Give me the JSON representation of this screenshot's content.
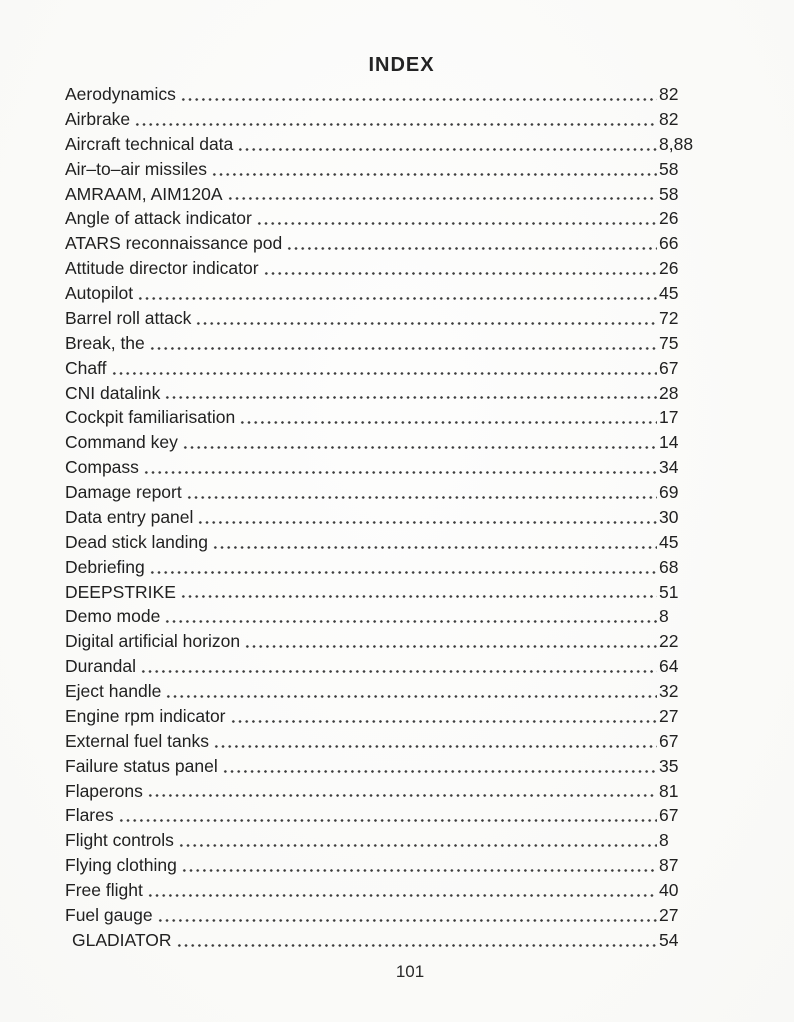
{
  "page": {
    "title": "INDEX",
    "footer_page_number": "101"
  },
  "index": {
    "entries": [
      {
        "label": "Aerodynamics",
        "page": "82"
      },
      {
        "label": "Airbrake",
        "page": "82"
      },
      {
        "label": "Aircraft technical data",
        "page": "8,88"
      },
      {
        "label": "Air–to–air missiles",
        "page": "58"
      },
      {
        "label": "AMRAAM, AIM120A",
        "page": "58"
      },
      {
        "label": "Angle of attack indicator",
        "page": "26"
      },
      {
        "label": "ATARS reconnaissance pod",
        "page": "66"
      },
      {
        "label": "Attitude director indicator",
        "page": "26"
      },
      {
        "label": "Autopilot",
        "page": "45"
      },
      {
        "label": "Barrel roll attack",
        "page": "72"
      },
      {
        "label": "Break, the",
        "page": "75"
      },
      {
        "label": "Chaff",
        "page": "67"
      },
      {
        "label": "CNI datalink",
        "page": "28"
      },
      {
        "label": "Cockpit familiarisation",
        "page": "17"
      },
      {
        "label": "Command key",
        "page": "14"
      },
      {
        "label": "Compass",
        "page": "34"
      },
      {
        "label": "Damage report",
        "page": "69"
      },
      {
        "label": "Data entry panel",
        "page": "30"
      },
      {
        "label": "Dead stick landing",
        "page": "45"
      },
      {
        "label": "Debriefing",
        "page": "68"
      },
      {
        "label": "DEEPSTRIKE",
        "page": "51"
      },
      {
        "label": "Demo mode",
        "page": "8"
      },
      {
        "label": "Digital artificial horizon",
        "page": "22"
      },
      {
        "label": "Durandal",
        "page": "64"
      },
      {
        "label": "Eject handle",
        "page": "32"
      },
      {
        "label": "Engine rpm indicator",
        "page": "27"
      },
      {
        "label": "External fuel tanks",
        "page": "67"
      },
      {
        "label": "Failure status panel",
        "page": "35"
      },
      {
        "label": "Flaperons",
        "page": "81"
      },
      {
        "label": "Flares",
        "page": "67"
      },
      {
        "label": "Flight controls",
        "page": "8"
      },
      {
        "label": "Flying clothing",
        "page": "87"
      },
      {
        "label": "Free flight",
        "page": "40"
      },
      {
        "label": "Fuel gauge",
        "page": "27"
      },
      {
        "label": "GLADIATOR",
        "page": "54",
        "indent": true
      }
    ]
  }
}
